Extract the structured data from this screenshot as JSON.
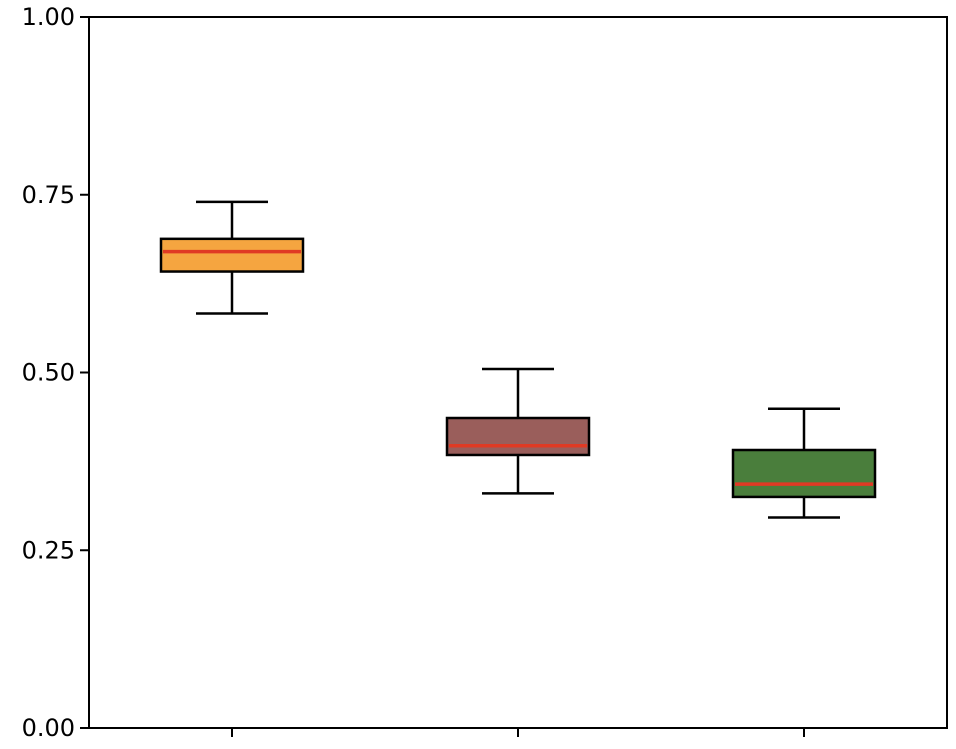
{
  "chart_data": {
    "type": "box",
    "title": "",
    "xlabel": "",
    "ylabel": "",
    "ylim": [
      0,
      1
    ],
    "yticks": [
      {
        "value": 0.0,
        "label": "0.00"
      },
      {
        "value": 0.25,
        "label": "0.25"
      },
      {
        "value": 0.5,
        "label": "0.50"
      },
      {
        "value": 0.75,
        "label": "0.75"
      },
      {
        "value": 1.0,
        "label": "1.00"
      }
    ],
    "grid": false,
    "median_color": "#e03a24",
    "edge_color": "#000000",
    "boxes": [
      {
        "whisker_low": 0.583,
        "q1": 0.642,
        "median": 0.67,
        "q3": 0.688,
        "whisker_high": 0.74,
        "fill": "#f5a540"
      },
      {
        "whisker_low": 0.33,
        "q1": 0.384,
        "median": 0.397,
        "q3": 0.436,
        "whisker_high": 0.505,
        "fill": "#9a5e5b"
      },
      {
        "whisker_low": 0.296,
        "q1": 0.325,
        "median": 0.343,
        "q3": 0.391,
        "whisker_high": 0.449,
        "fill": "#4a7e3c"
      }
    ]
  }
}
